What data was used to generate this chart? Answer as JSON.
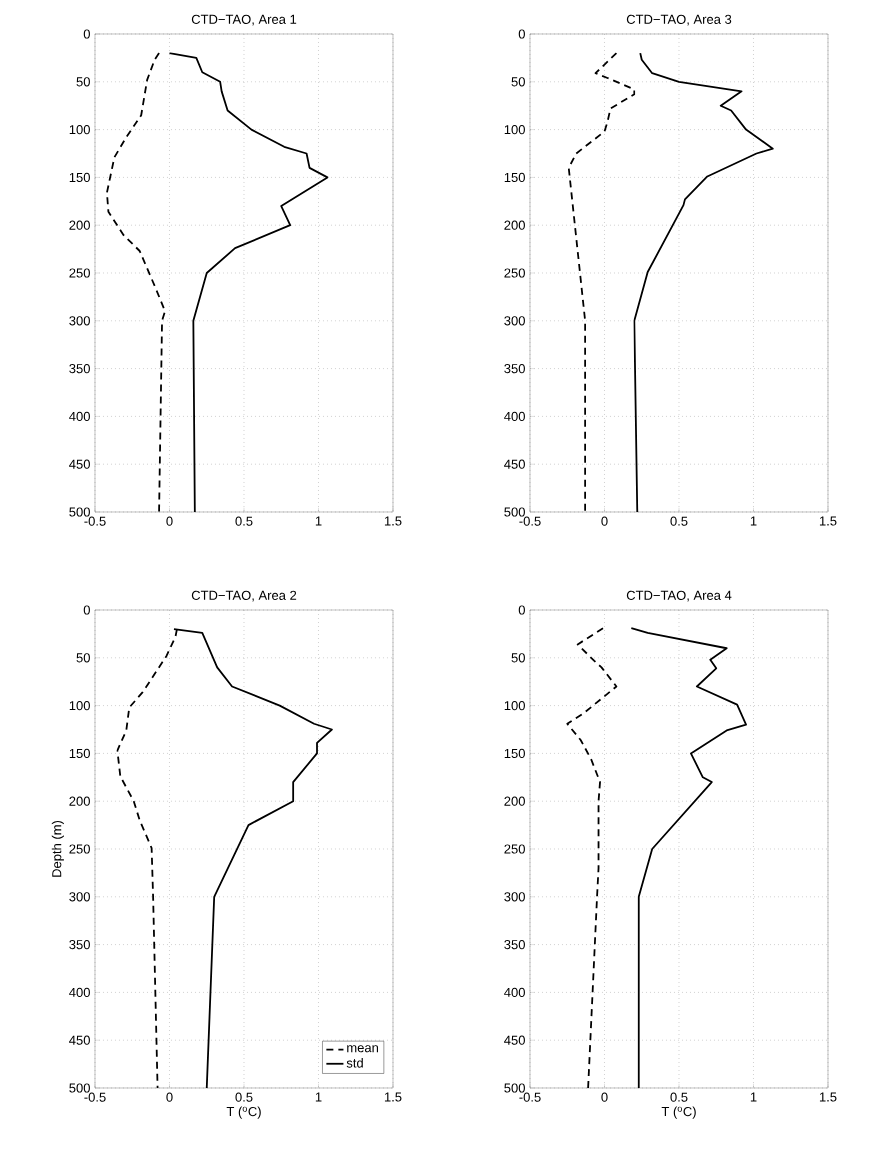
{
  "chart_data": [
    {
      "type": "line",
      "title": "CTD−TAO, Area 1",
      "xlim": [
        -0.5,
        1.5
      ],
      "ylim": [
        500,
        0
      ],
      "xticks": [
        -0.5,
        0,
        0.5,
        1,
        1.5
      ],
      "yticks": [
        0,
        50,
        100,
        150,
        200,
        250,
        300,
        350,
        400,
        450,
        500
      ],
      "grid": true,
      "series": [
        {
          "color": "#000000",
          "line_style": "dashed",
          "x": [
            -0.07,
            -0.1,
            -0.15,
            -0.19,
            -0.29,
            -0.37,
            -0.42,
            -0.41,
            -0.31,
            -0.2,
            -0.09,
            -0.03,
            -0.05,
            -0.07
          ],
          "values": [
            20,
            27,
            48,
            85,
            108,
            129,
            166,
            186,
            210,
            227,
            267,
            290,
            300,
            500
          ]
        },
        {
          "color": "#000000",
          "line_style": "solid",
          "x": [
            0,
            0.18,
            0.22,
            0.34,
            0.35,
            0.39,
            0.55,
            0.77,
            0.92,
            0.94,
            1.06,
            0.75,
            0.81,
            0.44,
            0.25,
            0.16,
            0.17
          ],
          "values": [
            20,
            25,
            40,
            50,
            60,
            80,
            100,
            118,
            125,
            140,
            150,
            180,
            200,
            224,
            250,
            300,
            500
          ]
        }
      ]
    },
    {
      "type": "line",
      "title": "CTD−TAO, Area 3",
      "xlim": [
        -0.5,
        1.5
      ],
      "ylim": [
        500,
        0
      ],
      "xticks": [
        -0.5,
        0,
        0.5,
        1,
        1.5
      ],
      "yticks": [
        0,
        50,
        100,
        150,
        200,
        250,
        300,
        350,
        400,
        450,
        500
      ],
      "grid": true,
      "series": [
        {
          "color": "#000000",
          "line_style": "dashed",
          "x": [
            0.08,
            -0.06,
            0.02,
            0.2,
            0.2,
            0.04,
            0.02,
            0.0,
            -0.19,
            -0.24,
            -0.13,
            -0.13
          ],
          "values": [
            20,
            41,
            46,
            58,
            63,
            78,
            92,
            102,
            125,
            140,
            300,
            500
          ]
        },
        {
          "color": "#000000",
          "line_style": "solid",
          "x": [
            0.24,
            0.25,
            0.32,
            0.5,
            0.92,
            0.78,
            0.85,
            0.95,
            1.13,
            1.02,
            0.69,
            0.54,
            0.53,
            0.29,
            0.2,
            0.22
          ],
          "values": [
            20,
            27,
            41,
            50,
            60,
            75,
            80,
            100,
            120,
            125,
            149,
            173,
            179,
            249,
            300,
            500
          ]
        }
      ]
    },
    {
      "type": "line",
      "title": "CTD−TAO, Area 2",
      "xlabel": "T ($^{o}$C)",
      "ylabel": "Depth (m)",
      "xlim": [
        -0.5,
        1.5
      ],
      "ylim": [
        500,
        0
      ],
      "xticks": [
        -0.5,
        0,
        0.5,
        1,
        1.5
      ],
      "yticks": [
        0,
        50,
        100,
        150,
        200,
        250,
        300,
        350,
        400,
        450,
        500
      ],
      "grid": true,
      "legend": "bottom right",
      "series": [
        {
          "name": "mean",
          "color": "#000000",
          "line_style": "dashed",
          "x": [
            0.05,
            0.04,
            -0.02,
            -0.18,
            -0.27,
            -0.29,
            -0.35,
            -0.33,
            -0.24,
            -0.2,
            -0.12,
            -0.11,
            -0.08
          ],
          "values": [
            20,
            28,
            48,
            86,
            102,
            126,
            147,
            174,
            200,
            220,
            249,
            300,
            500
          ]
        },
        {
          "name": "std",
          "color": "#000000",
          "line_style": "solid",
          "x": [
            0.03,
            0.22,
            0.32,
            0.42,
            0.74,
            0.97,
            1.09,
            0.99,
            0.99,
            0.83,
            0.83,
            0.53,
            0.3,
            0.25
          ],
          "values": [
            20,
            24,
            60,
            80,
            100,
            119,
            125,
            139,
            150,
            180,
            200,
            225,
            300,
            500
          ]
        }
      ]
    },
    {
      "type": "line",
      "title": "CTD−TAO, Area 4",
      "xlabel": "T ($^{o}$C)",
      "xlim": [
        -0.5,
        1.5
      ],
      "ylim": [
        500,
        0
      ],
      "xticks": [
        -0.5,
        0,
        0.5,
        1,
        1.5
      ],
      "yticks": [
        0,
        50,
        100,
        150,
        200,
        250,
        300,
        350,
        400,
        450,
        500
      ],
      "grid": true,
      "series": [
        {
          "color": "#000000",
          "line_style": "dashed",
          "x": [
            -0.01,
            -0.18,
            -0.07,
            -0.02,
            0.08,
            -0.14,
            -0.25,
            -0.16,
            -0.09,
            -0.03,
            -0.04,
            -0.04,
            -0.05,
            -0.11
          ],
          "values": [
            19,
            36,
            53,
            60,
            80,
            108,
            119,
            136,
            156,
            180,
            200,
            270,
            300,
            500
          ]
        },
        {
          "color": "#000000",
          "line_style": "solid",
          "x": [
            0.18,
            0.29,
            0.82,
            0.71,
            0.75,
            0.62,
            0.89,
            0.95,
            0.82,
            0.58,
            0.66,
            0.72,
            0.32,
            0.23,
            0.23
          ],
          "values": [
            19,
            24,
            40,
            52,
            61,
            80,
            99,
            120,
            126,
            150,
            175,
            180,
            250,
            300,
            500
          ]
        }
      ]
    }
  ]
}
